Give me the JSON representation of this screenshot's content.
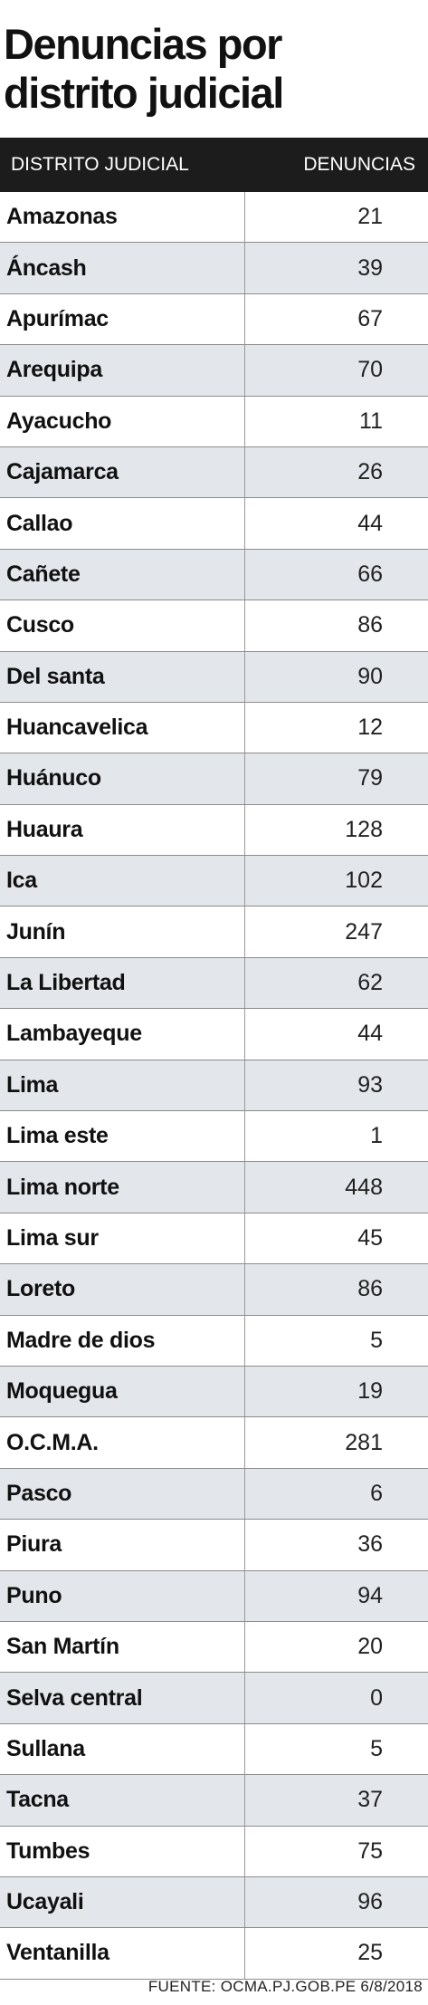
{
  "header": {
    "title": "Denuncias por distrito judicial"
  },
  "table": {
    "columns": [
      "DISTRITO JUDICIAL",
      "DENUNCIAS"
    ],
    "rows": [
      [
        "Amazonas",
        21
      ],
      [
        "Áncash",
        39
      ],
      [
        "Apurímac",
        67
      ],
      [
        "Arequipa",
        70
      ],
      [
        "Ayacucho",
        11
      ],
      [
        "Cajamarca",
        26
      ],
      [
        "Callao",
        44
      ],
      [
        "Cañete",
        66
      ],
      [
        "Cusco",
        86
      ],
      [
        "Del santa",
        90
      ],
      [
        "Huancavelica",
        12
      ],
      [
        "Huánuco",
        79
      ],
      [
        "Huaura",
        128
      ],
      [
        "Ica",
        102
      ],
      [
        "Junín",
        247
      ],
      [
        "La Libertad",
        62
      ],
      [
        "Lambayeque",
        44
      ],
      [
        "Lima",
        93
      ],
      [
        "Lima este",
        1
      ],
      [
        "Lima norte",
        448
      ],
      [
        "Lima sur",
        45
      ],
      [
        "Loreto",
        86
      ],
      [
        "Madre de dios",
        5
      ],
      [
        "Moquegua",
        19
      ],
      [
        "O.C.M.A.",
        281
      ],
      [
        "Pasco",
        6
      ],
      [
        "Piura",
        36
      ],
      [
        "Puno",
        94
      ],
      [
        "San Martín",
        20
      ],
      [
        "Selva central",
        0
      ],
      [
        "Sullana",
        5
      ],
      [
        "Tacna",
        37
      ],
      [
        "Tumbes",
        75
      ],
      [
        "Ucayali",
        96
      ],
      [
        "Ventanilla",
        25
      ]
    ]
  },
  "footer": {
    "source": "FUENTE: OCMA.PJ.GOB.PE 6/8/2018"
  }
}
